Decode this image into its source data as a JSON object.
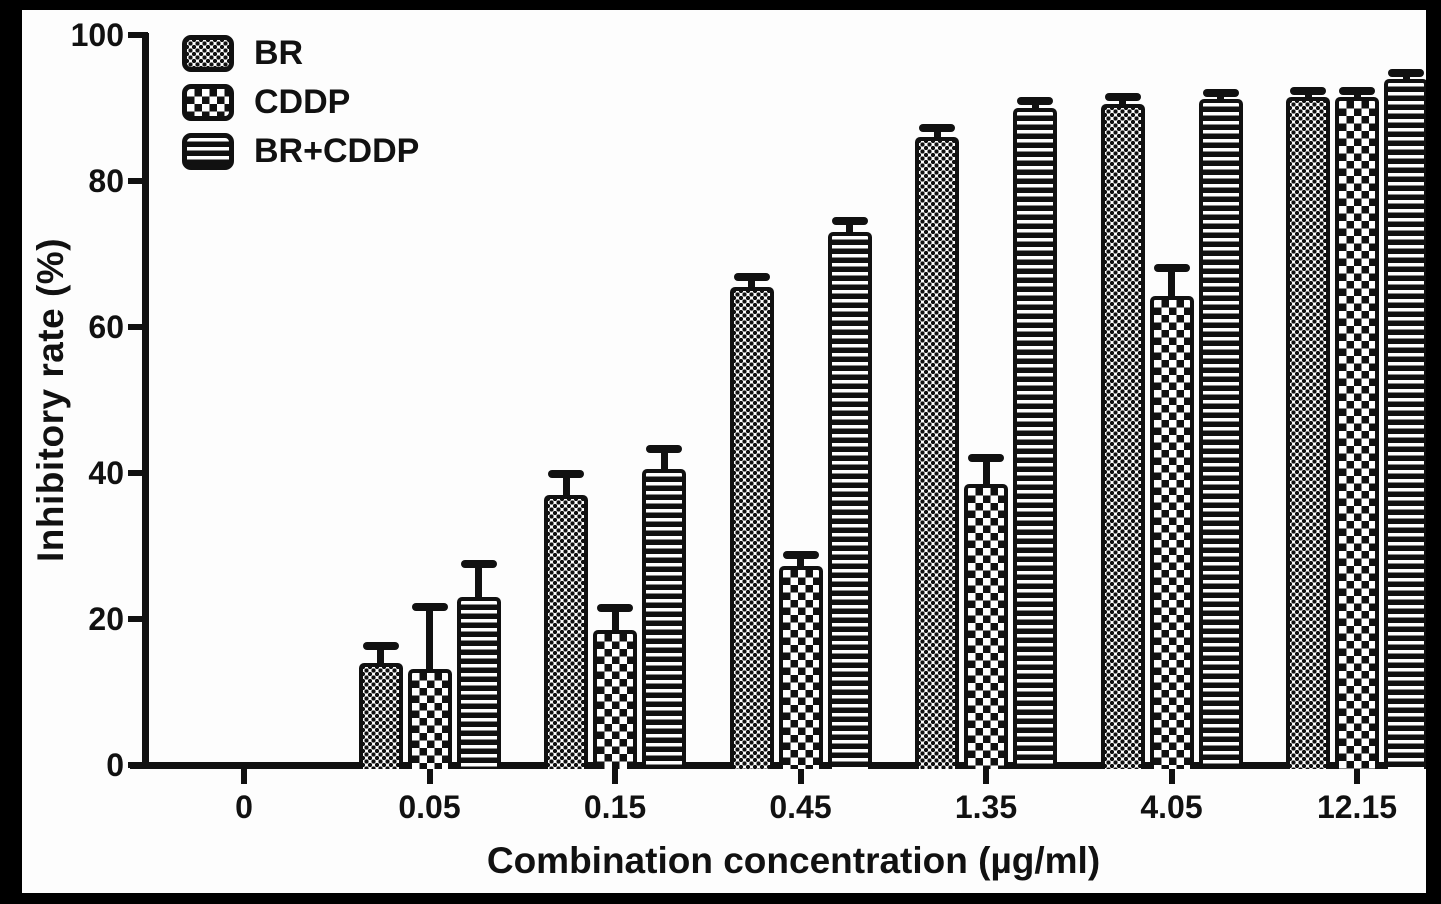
{
  "colors": {
    "ink": "#111111",
    "paper": "#fdfdfd",
    "frame": "#000000"
  },
  "chart_data": {
    "type": "bar",
    "title": "",
    "xlabel": "Combination concentration (µg/ml)",
    "ylabel": "Inhibitory rate (%)",
    "categories": [
      "0",
      "0.05",
      "0.15",
      "0.45",
      "1.35",
      "4.05",
      "12.15"
    ],
    "y_ticks": [
      0,
      20,
      40,
      60,
      80,
      100
    ],
    "ylim": [
      0,
      100
    ],
    "grid": false,
    "legend_position": "top-left",
    "error_bars": "upper caps shown",
    "series": [
      {
        "name": "BR",
        "pattern": "dots",
        "values": [
          0,
          14,
          37,
          65.5,
          86,
          90.5,
          91.5
        ],
        "errors": [
          0,
          2.3,
          2.8,
          1.3,
          1.2,
          1,
          0.8
        ]
      },
      {
        "name": "CDDP",
        "pattern": "checker",
        "values": [
          0,
          13.2,
          18.5,
          27.3,
          38.5,
          64.3,
          91.5
        ],
        "errors": [
          0,
          8.5,
          3,
          1.5,
          3.5,
          3.8,
          0.8
        ]
      },
      {
        "name": "BR+CDDP",
        "pattern": "hlines",
        "values": [
          0,
          23,
          40.5,
          73,
          90,
          91.3,
          94
        ],
        "errors": [
          0,
          4.5,
          2.8,
          1.5,
          1,
          0.8,
          0.8
        ]
      }
    ]
  }
}
